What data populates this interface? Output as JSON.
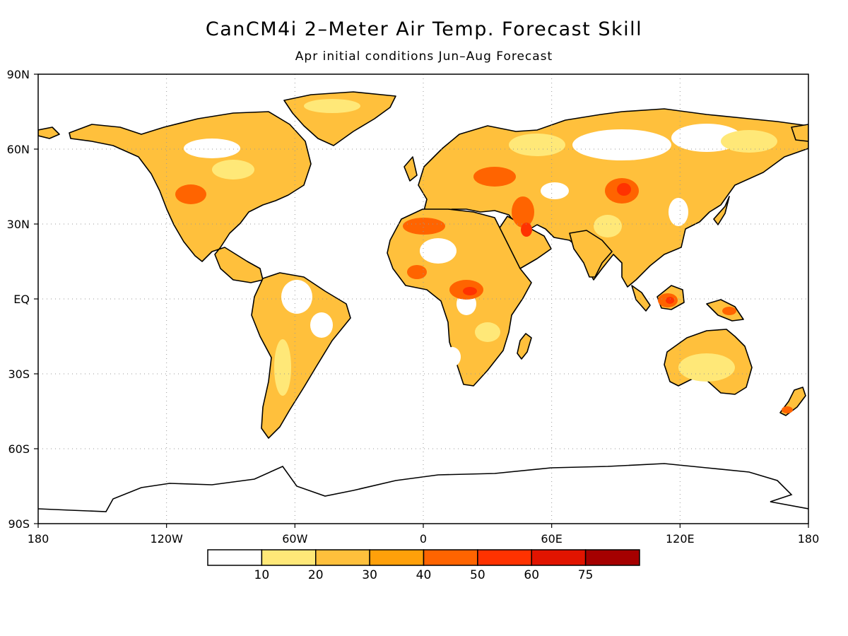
{
  "title": "CanCM4i 2–Meter Air Temp. Forecast Skill",
  "subtitle": "Apr initial conditions  Jun–Aug Forecast",
  "map": {
    "lon_range": [
      -180,
      180
    ],
    "lat_range": [
      -90,
      90
    ],
    "lon_ticks": [
      {
        "lon": -180,
        "label": "180"
      },
      {
        "lon": -120,
        "label": "120W"
      },
      {
        "lon": -60,
        "label": "60W"
      },
      {
        "lon": 0,
        "label": "0"
      },
      {
        "lon": 60,
        "label": "60E"
      },
      {
        "lon": 120,
        "label": "120E"
      },
      {
        "lon": 180,
        "label": "180"
      }
    ],
    "lat_ticks": [
      {
        "lat": 90,
        "label": "90N"
      },
      {
        "lat": 60,
        "label": "60N"
      },
      {
        "lat": 30,
        "label": "30N"
      },
      {
        "lat": 0,
        "label": "EQ"
      },
      {
        "lat": -30,
        "label": "30S"
      },
      {
        "lat": -60,
        "label": "60S"
      },
      {
        "lat": -90,
        "label": "90S"
      }
    ],
    "gridlines": "dotted"
  },
  "colorbar": {
    "colors": [
      "#ffffff",
      "#ffe878",
      "#ffc03c",
      "#ffa00a",
      "#ff6400",
      "#ff3200",
      "#e11400",
      "#a50000"
    ],
    "labels": [
      "10",
      "20",
      "30",
      "40",
      "50",
      "60",
      "75"
    ]
  },
  "colors": {
    "land_base": "#ffc03c",
    "coast": "#000000"
  }
}
